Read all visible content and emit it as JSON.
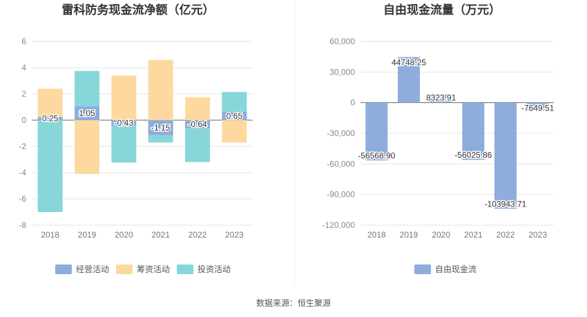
{
  "chart_data": [
    {
      "type": "bar",
      "stacked": true,
      "title": "雷科防务现金流净额（亿元）",
      "categories": [
        "2018",
        "2019",
        "2020",
        "2021",
        "2022",
        "2023"
      ],
      "ylim": [
        -8,
        6
      ],
      "yticks": [
        "6",
        "4",
        "2",
        "0",
        "-2",
        "-4",
        "-6",
        "-8"
      ],
      "ytick_values": [
        6,
        4,
        2,
        0,
        -2,
        -4,
        -6,
        -8
      ],
      "grid": true,
      "legend_position": "bottom",
      "series": [
        {
          "name": "经营活动",
          "color": "#8eacdc",
          "values": [
            0.25,
            1.05,
            -0.43,
            -1.15,
            -0.64,
            0.65
          ],
          "labels": [
            "0.25",
            "1.05",
            "-0.43",
            "-1.15",
            "-0.64",
            "0.65"
          ]
        },
        {
          "name": "筹资活动",
          "color": "#fdd9a0",
          "values": [
            2.15,
            -4.1,
            3.4,
            4.6,
            1.75,
            -1.7
          ]
        },
        {
          "name": "投资活动",
          "color": "#87d6da",
          "values": [
            -7.0,
            2.7,
            -2.8,
            -0.55,
            -2.55,
            1.5
          ]
        }
      ]
    },
    {
      "type": "bar",
      "title": "自由现金流量（万元）",
      "categories": [
        "2018",
        "2019",
        "2020",
        "2021",
        "2022",
        "2023"
      ],
      "ylim": [
        -120000,
        60000
      ],
      "yticks": [
        "60,000",
        "30,000",
        "0",
        "-30,000",
        "-60,000",
        "-90,000",
        "-120,000"
      ],
      "ytick_values": [
        60000,
        30000,
        0,
        -30000,
        -60000,
        -90000,
        -120000
      ],
      "grid": true,
      "legend_position": "bottom",
      "series": [
        {
          "name": "自由现金流",
          "color": "#8eacdc",
          "values": [
            -56568.9,
            44748.25,
            8323.91,
            -56025.86,
            -103943.71,
            -7649.51
          ],
          "labels": [
            "-56568.90",
            "44748.25",
            "8323.91",
            "-56025.86",
            "-103943.71",
            "-7649.51"
          ]
        }
      ]
    }
  ],
  "footer": {
    "source": "数据来源：恒生聚源"
  }
}
